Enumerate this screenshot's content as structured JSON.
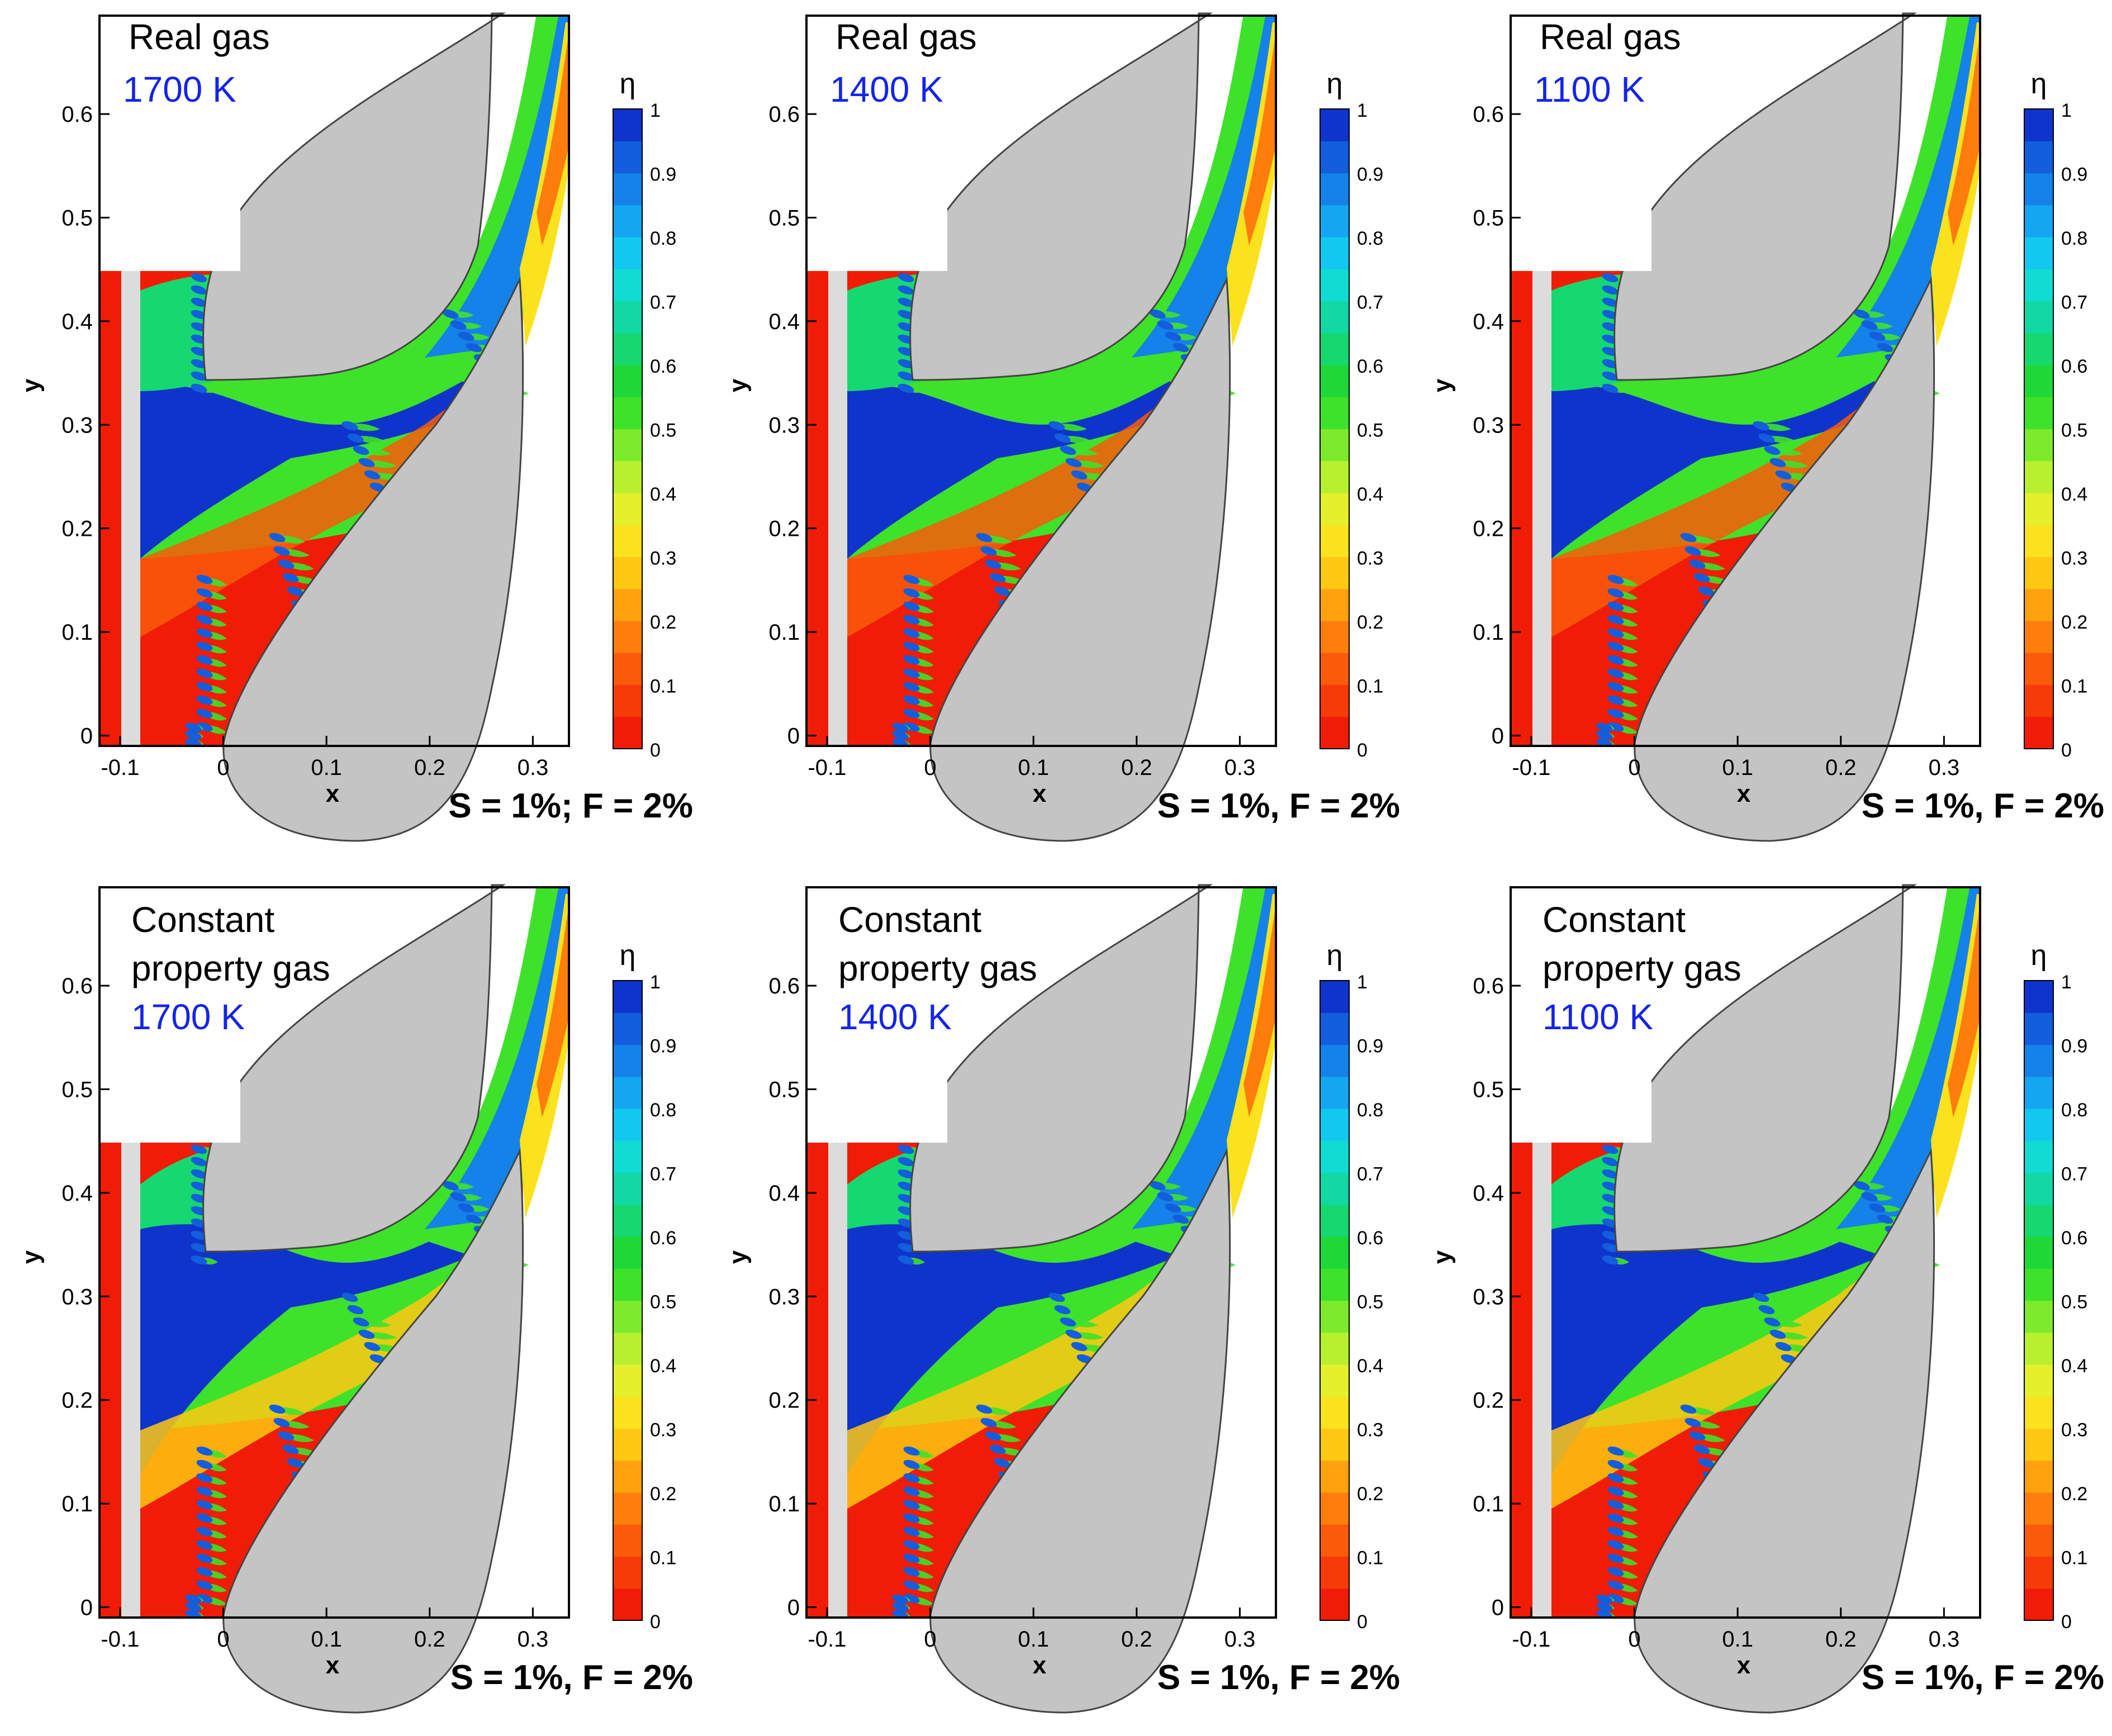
{
  "figure": {
    "layout": "2 rows x 3 columns of contour plots"
  },
  "colorbar": {
    "symbol": "η",
    "ticks": [
      0,
      0.1,
      0.2,
      0.3,
      0.4,
      0.5,
      0.6,
      0.7,
      0.8,
      0.9,
      1
    ],
    "tick_labels": [
      "0",
      "0.1",
      "0.2",
      "0.3",
      "0.4",
      "0.5",
      "0.6",
      "0.7",
      "0.8",
      "0.9",
      "1"
    ],
    "levels": 20,
    "colors": [
      "#f01c06",
      "#f63a08",
      "#fa5a0a",
      "#fd7e0c",
      "#ffa20e",
      "#ffc812",
      "#fae21e",
      "#e4f02c",
      "#b8f030",
      "#7eea2c",
      "#3ee22a",
      "#1ed838",
      "#16d870",
      "#12d8a4",
      "#10dcd4",
      "#12c8f0",
      "#14a6f0",
      "#1482e8",
      "#125edc",
      "#0e34cc"
    ]
  },
  "colors": {
    "label_blue": "#1424e8",
    "blade_gray": "#c4c4c4",
    "slot_gray": "#dcdcdc",
    "frame": "#000000"
  },
  "chart_data": [
    {
      "type": "heatmap",
      "title": "Real gas",
      "temperature": "1700 K",
      "condition": "S = 1%; F = 2%",
      "xlabel": "x",
      "ylabel": "y",
      "xlim": [
        -0.12,
        0.335
      ],
      "ylim": [
        -0.01,
        0.695
      ],
      "xticks": [
        -0.1,
        0,
        0.1,
        0.2,
        0.3
      ],
      "xtick_labels": [
        "-0.1",
        "0",
        "0.1",
        "0.2",
        "0.3"
      ],
      "yticks": [
        0,
        0.1,
        0.2,
        0.3,
        0.4,
        0.5,
        0.6
      ],
      "ytick_labels": [
        "0",
        "0.1",
        "0.2",
        "0.3",
        "0.4",
        "0.5",
        "0.6"
      ],
      "colorbar_label": "η",
      "value_range": [
        0,
        1
      ]
    },
    {
      "type": "heatmap",
      "title": "Real gas",
      "temperature": "1400 K",
      "condition": "S = 1%, F = 2%",
      "xlabel": "x",
      "ylabel": "y",
      "xlim": [
        -0.12,
        0.335
      ],
      "ylim": [
        -0.01,
        0.695
      ],
      "xticks": [
        -0.1,
        0,
        0.1,
        0.2,
        0.3
      ],
      "xtick_labels": [
        "-0.1",
        "0",
        "0.1",
        "0.2",
        "0.3"
      ],
      "yticks": [
        0,
        0.1,
        0.2,
        0.3,
        0.4,
        0.5,
        0.6
      ],
      "ytick_labels": [
        "0",
        "0.1",
        "0.2",
        "0.3",
        "0.4",
        "0.5",
        "0.6"
      ],
      "colorbar_label": "η",
      "value_range": [
        0,
        1
      ]
    },
    {
      "type": "heatmap",
      "title": "Real gas",
      "temperature": "1100 K",
      "condition": "S = 1%, F = 2%",
      "xlabel": "x",
      "ylabel": "y",
      "xlim": [
        -0.12,
        0.335
      ],
      "ylim": [
        -0.01,
        0.695
      ],
      "xticks": [
        -0.1,
        0,
        0.1,
        0.2,
        0.3
      ],
      "xtick_labels": [
        "-0.1",
        "0",
        "0.1",
        "0.2",
        "0.3"
      ],
      "yticks": [
        0,
        0.1,
        0.2,
        0.3,
        0.4,
        0.5,
        0.6
      ],
      "ytick_labels": [
        "0",
        "0.1",
        "0.2",
        "0.3",
        "0.4",
        "0.5",
        "0.6"
      ],
      "colorbar_label": "η",
      "value_range": [
        0,
        1
      ]
    },
    {
      "type": "heatmap",
      "title": "Constant property gas",
      "title_lines": [
        "Constant",
        "property gas"
      ],
      "temperature": "1700 K",
      "condition": "S = 1%, F = 2%",
      "xlabel": "x",
      "ylabel": "y",
      "xlim": [
        -0.12,
        0.335
      ],
      "ylim": [
        -0.01,
        0.695
      ],
      "xticks": [
        -0.1,
        0,
        0.1,
        0.2,
        0.3
      ],
      "xtick_labels": [
        "-0.1",
        "0",
        "0.1",
        "0.2",
        "0.3"
      ],
      "yticks": [
        0,
        0.1,
        0.2,
        0.3,
        0.4,
        0.5,
        0.6
      ],
      "ytick_labels": [
        "0",
        "0.1",
        "0.2",
        "0.3",
        "0.4",
        "0.5",
        "0.6"
      ],
      "colorbar_label": "η",
      "value_range": [
        0,
        1
      ]
    },
    {
      "type": "heatmap",
      "title": "Constant property gas",
      "title_lines": [
        "Constant",
        "property gas"
      ],
      "temperature": "1400 K",
      "condition": "S = 1%, F = 2%",
      "xlabel": "x",
      "ylabel": "y",
      "xlim": [
        -0.12,
        0.335
      ],
      "ylim": [
        -0.01,
        0.695
      ],
      "xticks": [
        -0.1,
        0,
        0.1,
        0.2,
        0.3
      ],
      "xtick_labels": [
        "-0.1",
        "0",
        "0.1",
        "0.2",
        "0.3"
      ],
      "yticks": [
        0,
        0.1,
        0.2,
        0.3,
        0.4,
        0.5,
        0.6
      ],
      "ytick_labels": [
        "0",
        "0.1",
        "0.2",
        "0.3",
        "0.4",
        "0.5",
        "0.6"
      ],
      "colorbar_label": "η",
      "value_range": [
        0,
        1
      ]
    },
    {
      "type": "heatmap",
      "title": "Constant property gas",
      "title_lines": [
        "Constant",
        "property gas"
      ],
      "temperature": "1100 K",
      "condition": "S = 1%, F = 2%",
      "xlabel": "x",
      "ylabel": "y",
      "xlim": [
        -0.12,
        0.335
      ],
      "ylim": [
        -0.01,
        0.695
      ],
      "xticks": [
        -0.1,
        0,
        0.1,
        0.2,
        0.3
      ],
      "xtick_labels": [
        "-0.1",
        "0",
        "0.1",
        "0.2",
        "0.3"
      ],
      "yticks": [
        0,
        0.1,
        0.2,
        0.3,
        0.4,
        0.5,
        0.6
      ],
      "ytick_labels": [
        "0",
        "0.1",
        "0.2",
        "0.3",
        "0.4",
        "0.5",
        "0.6"
      ],
      "colorbar_label": "η",
      "value_range": [
        0,
        1
      ]
    }
  ]
}
